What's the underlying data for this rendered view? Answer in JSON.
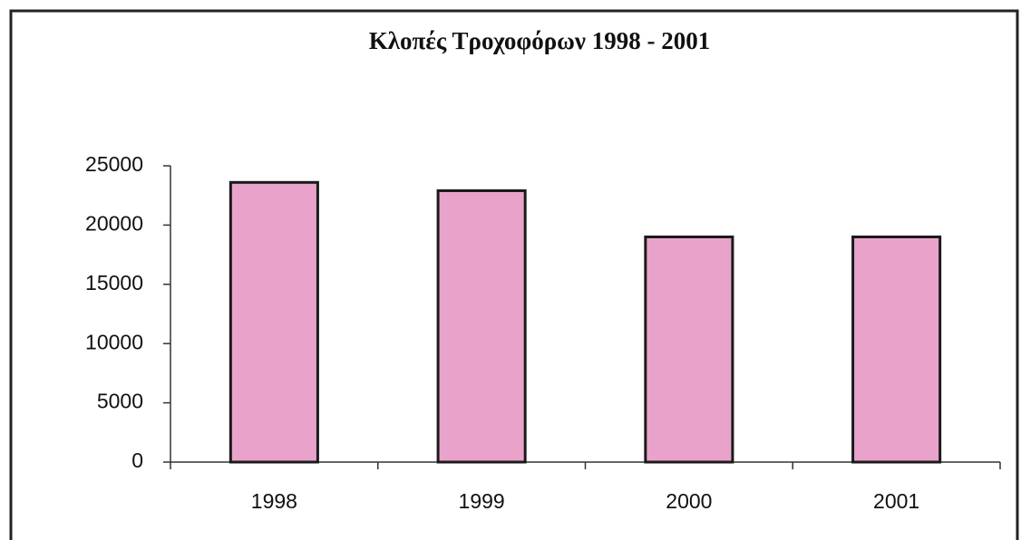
{
  "chart_data": {
    "type": "bar",
    "title": "Κλοπές Τροχοφόρων 1998 - 2001",
    "categories": [
      "1998",
      "1999",
      "2000",
      "2001"
    ],
    "values": [
      23600,
      22900,
      19000,
      19000
    ],
    "color": "#e9a3cb",
    "ylim": [
      0,
      25000
    ],
    "yticks": [
      0,
      5000,
      10000,
      15000,
      20000,
      25000
    ],
    "grid": false
  }
}
